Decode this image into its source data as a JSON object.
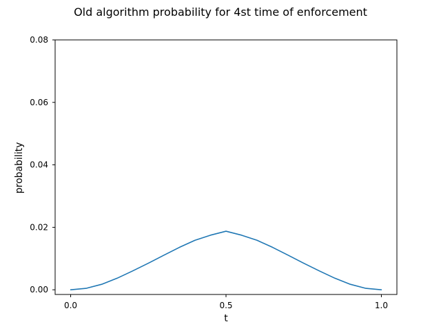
{
  "chart_data": {
    "type": "line",
    "title": "Old algorithm probability for 4st time of enforcement",
    "xlabel": "t",
    "ylabel": "probability",
    "xlim": [
      -0.05,
      1.05
    ],
    "ylim": [
      -0.0015,
      0.08
    ],
    "x_ticks": [
      0.0,
      0.5,
      1.0
    ],
    "x_tick_labels": [
      "0.0",
      "0.5",
      "1.0"
    ],
    "y_ticks": [
      0.0,
      0.02,
      0.04,
      0.06,
      0.08
    ],
    "y_tick_labels": [
      "0.00",
      "0.02",
      "0.04",
      "0.06",
      "0.08"
    ],
    "grid": false,
    "legend": "none",
    "series": [
      {
        "color": "#1f77b4",
        "x": [
          0.0,
          0.05,
          0.1,
          0.15,
          0.2,
          0.25,
          0.3,
          0.35,
          0.4,
          0.45,
          0.5,
          0.55,
          0.6,
          0.65,
          0.7,
          0.75,
          0.8,
          0.85,
          0.9,
          0.95,
          1.0
        ],
        "y": [
          0.0,
          0.00046,
          0.00176,
          0.00372,
          0.00606,
          0.00851,
          0.01107,
          0.01358,
          0.01584,
          0.01748,
          0.01875,
          0.01748,
          0.01584,
          0.01358,
          0.01107,
          0.00851,
          0.00606,
          0.00372,
          0.00176,
          0.00046,
          0.0
        ]
      }
    ]
  }
}
